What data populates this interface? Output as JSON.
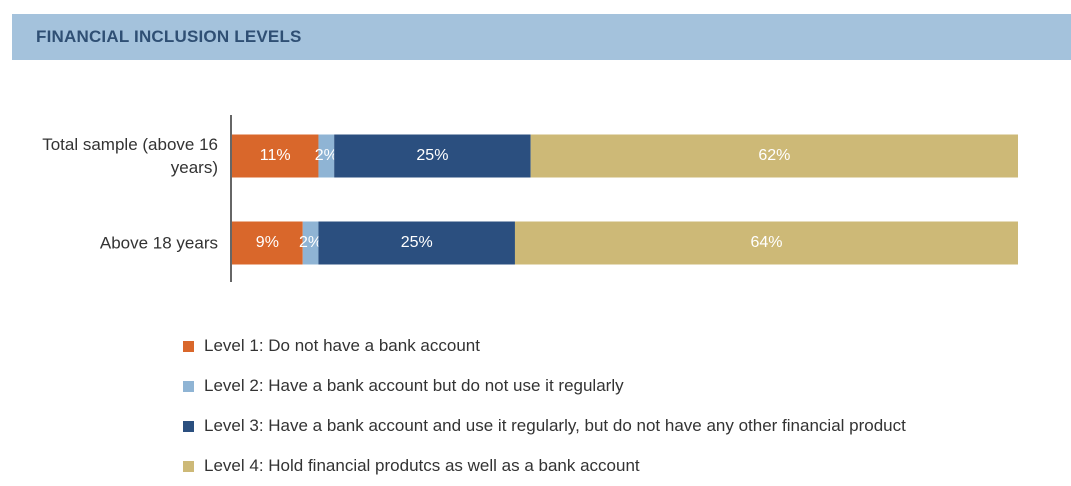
{
  "chart_data": {
    "type": "stacked-bar-horizontal",
    "title": "FINANCIAL INCLUSION LEVELS",
    "categories": [
      "Total sample (above 16 years)",
      "Above 18 years"
    ],
    "xlim": [
      0,
      100
    ],
    "series": [
      {
        "name": "Level 1: Do not  have a bank account",
        "color": "#d9672b",
        "values": [
          11,
          9
        ],
        "value_labels": [
          "11%",
          "9%"
        ]
      },
      {
        "name": "Level 2: Have a bank account but do not use it regularly",
        "color": "#8fb4d4",
        "values": [
          2,
          2
        ],
        "value_labels": [
          "2%",
          "2%"
        ]
      },
      {
        "name": "Level 3: Have a bank account and use it regularly, but do not have any other financial product",
        "color": "#2b4f7f",
        "values": [
          25,
          25
        ],
        "value_labels": [
          "25%",
          "25%"
        ]
      },
      {
        "name": "Level 4: Hold financial produtcs as well as a bank account",
        "color": "#cdb977",
        "values": [
          62,
          64
        ],
        "value_labels": [
          "62%",
          "64%"
        ]
      }
    ]
  }
}
